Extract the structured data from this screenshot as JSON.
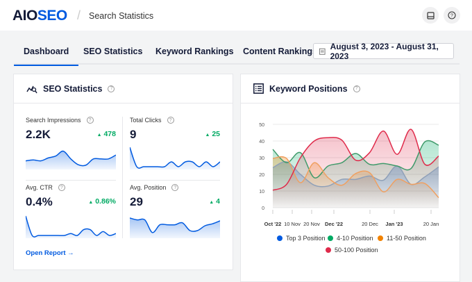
{
  "header": {
    "logo_main": "AIO",
    "logo_accent": "SEO",
    "breadcrumb": "Search Statistics",
    "icons": [
      "inbox-icon",
      "help-icon"
    ]
  },
  "tabs": [
    {
      "label": "Dashboard",
      "active": true
    },
    {
      "label": "SEO Statistics"
    },
    {
      "label": "Keyword Rankings"
    },
    {
      "label": "Content Rankings"
    }
  ],
  "date_range": "August 3, 2023 - August 31, 2023",
  "seo_stats": {
    "title": "SEO Statistics",
    "items": [
      {
        "label": "Search Impressions",
        "value": "2.2K",
        "delta": "478",
        "spark": [
          0.3,
          0.35,
          0.3,
          0.45,
          0.55,
          0.8,
          0.4,
          0.1,
          0.08,
          0.4,
          0.4,
          0.4,
          0.6
        ]
      },
      {
        "label": "Total Clicks",
        "value": "9",
        "delta": "25",
        "spark": [
          1,
          0,
          0,
          0,
          0,
          0,
          0.25,
          0,
          0.25,
          0.25,
          0,
          0.25,
          0,
          0.25
        ]
      },
      {
        "label": "Avg. CTR",
        "value": "0.4%",
        "delta": "0.86%",
        "spark": [
          1,
          0,
          0,
          0,
          0,
          0,
          0,
          0.1,
          0,
          0.3,
          0.3,
          0,
          0.2,
          0,
          0.1
        ]
      },
      {
        "label": "Avg. Position",
        "value": "29",
        "delta": "4",
        "spark": [
          0.9,
          0.8,
          0.8,
          0.15,
          0.55,
          0.55,
          0.55,
          0.65,
          0.25,
          0.25,
          0.5,
          0.6,
          0.75
        ]
      }
    ],
    "open_report": "Open Report →"
  },
  "keyword_positions": {
    "title": "Keyword Positions"
  },
  "chart_data": {
    "type": "area",
    "ylim": [
      0,
      50
    ],
    "yticks": [
      0,
      10,
      20,
      30,
      40,
      50
    ],
    "grid": true,
    "legend": "bottom",
    "xticks": [
      {
        "label": "Oct '22",
        "bold": true
      },
      {
        "label": "10 Nov"
      },
      {
        "label": "20 Nov"
      },
      {
        "label": "Dec '22",
        "bold": true
      },
      {
        "label": "20 Dec"
      },
      {
        "label": "Jan '23",
        "bold": true
      },
      {
        "label": "20 Jan"
      }
    ],
    "series": [
      {
        "name": "Top 3 Position",
        "color": "#005ae0",
        "line": "#8fa0b8",
        "values": [
          24,
          27.5,
          20,
          13.5,
          13,
          17,
          17,
          19,
          16.5,
          25,
          14,
          18.5,
          24.5
        ]
      },
      {
        "name": "4-10 Position",
        "color": "#00aa63",
        "line": "#3f9a6a",
        "values": [
          35,
          27,
          33,
          18,
          25,
          27,
          32.5,
          26,
          26.5,
          25,
          23.5,
          39.5,
          37.5
        ]
      },
      {
        "name": "11-50 Position",
        "color": "#f18200",
        "line": "#f0a060",
        "values": [
          29.5,
          29.5,
          15,
          27,
          18,
          13.5,
          20.5,
          21,
          9.5,
          17,
          14,
          14.5,
          6
        ]
      },
      {
        "name": "50-100 Position",
        "color": "#df2a4a",
        "line": "#df2a4a",
        "values": [
          10.5,
          14,
          30,
          40,
          42,
          40.5,
          28.5,
          33,
          46,
          32,
          47,
          26,
          31
        ]
      }
    ]
  }
}
